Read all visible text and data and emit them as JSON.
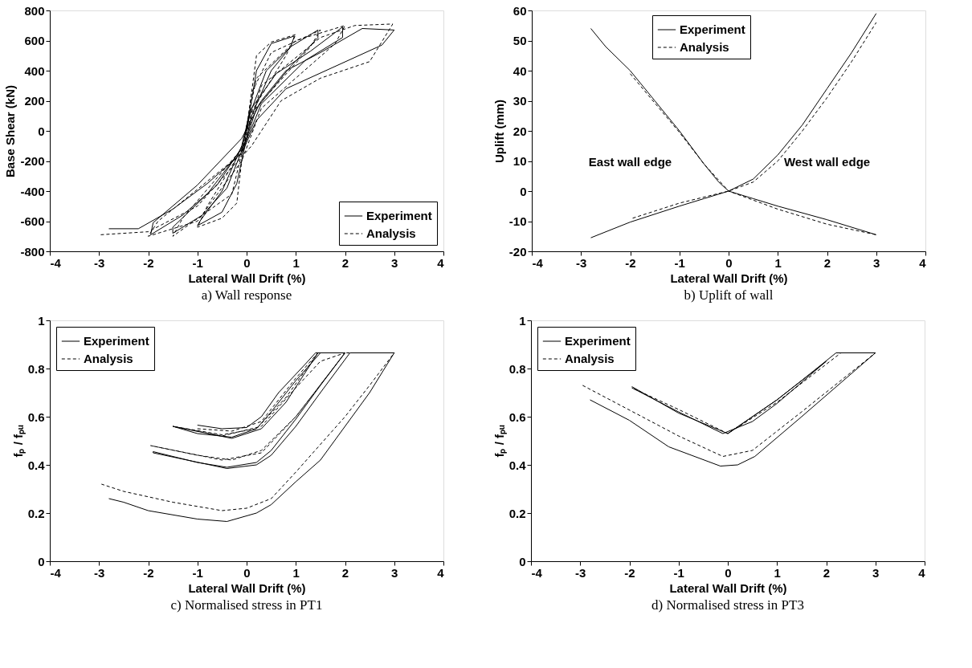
{
  "chart_data": [
    {
      "type": "line",
      "title": "a) Wall response",
      "xlabel": "Lateral Wall Drift (%)",
      "ylabel": "Base Shear (kN)",
      "xlim": [
        -4,
        4
      ],
      "xticks": [
        -4,
        -3,
        -2,
        -1,
        0,
        1,
        2,
        3,
        4
      ],
      "ylim": [
        -800,
        800
      ],
      "yticks": [
        -800,
        -600,
        -400,
        -200,
        0,
        200,
        400,
        600,
        800
      ],
      "legend": "bottom right",
      "series": [
        {
          "name": "Experiment",
          "color": "#000000",
          "line_style": "solid",
          "x": [
            0,
            0.2,
            0.5,
            0.97,
            0.9,
            0.5,
            0.1,
            0,
            -0.2,
            -0.5,
            -1.0,
            -0.95,
            -0.5,
            -0.1,
            0.05,
            0.4,
            0.9,
            1.45,
            1.45,
            0.9,
            0.2,
            0,
            -0.4,
            -0.9,
            -1.5,
            -1.5,
            -0.8,
            -0.1,
            0.1,
            0.6,
            1.3,
            1.95,
            1.95,
            1.2,
            0.3,
            0,
            -0.6,
            -1.3,
            -1.95,
            -1.9,
            -1.0,
            -0.1,
            0.3,
            0.8,
            1.5,
            2.35,
            3.0,
            2.75,
            0.8,
            0.2,
            -0.1,
            -0.8,
            -1.5,
            -2.2,
            -2.8
          ],
          "values": [
            0,
            400,
            580,
            630,
            560,
            400,
            100,
            -50,
            -350,
            -540,
            -630,
            -600,
            -400,
            -100,
            100,
            400,
            560,
            670,
            620,
            430,
            150,
            -50,
            -380,
            -560,
            -680,
            -640,
            -420,
            -120,
            150,
            380,
            530,
            690,
            620,
            470,
            180,
            -60,
            -360,
            -560,
            -690,
            -610,
            -360,
            -50,
            200,
            400,
            520,
            680,
            670,
            570,
            280,
            70,
            -150,
            -350,
            -520,
            -650,
            -650
          ]
        },
        {
          "name": "Analysis",
          "color": "#000000",
          "line_style": "dashed",
          "x": [
            0,
            0.2,
            0.5,
            1.0,
            0.8,
            0.05,
            -0.1,
            -0.2,
            -0.5,
            -1.0,
            -0.8,
            -0.05,
            0.1,
            0.5,
            1.5,
            1.3,
            0.1,
            -0.3,
            -1.5,
            -1.3,
            -0.1,
            0.2,
            1.0,
            2.0,
            1.8,
            0.3,
            -0.1,
            -1.0,
            -2.0,
            -1.8,
            -0.1,
            0.3,
            1.5,
            2.2,
            2.97,
            2.5,
            1.5,
            0.7,
            0.1,
            -1.0,
            -2.0,
            -2.97
          ],
          "values": [
            0,
            500,
            590,
            640,
            500,
            100,
            -200,
            -480,
            -580,
            -640,
            -500,
            -100,
            250,
            520,
            670,
            560,
            120,
            -420,
            -700,
            -580,
            -120,
            350,
            600,
            700,
            580,
            150,
            -200,
            -600,
            -700,
            -600,
            -150,
            300,
            620,
            700,
            710,
            460,
            350,
            200,
            -100,
            -500,
            -670,
            -690
          ]
        }
      ]
    },
    {
      "type": "line",
      "title": "b) Uplift of wall",
      "xlabel": "Lateral Wall Drift (%)",
      "ylabel": "Uplift (mm)",
      "xlim": [
        -4,
        4
      ],
      "xticks": [
        -4,
        -3,
        -2,
        -1,
        0,
        1,
        2,
        3,
        4
      ],
      "ylim": [
        -20,
        60
      ],
      "yticks": [
        -20,
        -10,
        0,
        10,
        20,
        30,
        40,
        50,
        60
      ],
      "legend": "top",
      "annotations": [
        "East wall edge",
        "West wall edge"
      ],
      "series": [
        {
          "name": "Experiment",
          "color": "#000000",
          "line_style": "solid",
          "x": [
            -2.8,
            -2,
            -1,
            -0.5,
            0,
            0.5,
            1,
            1.5,
            2,
            2.5,
            3
          ],
          "values": [
            -15.5,
            -10.3,
            -5,
            -2.5,
            0,
            4,
            12,
            22,
            34,
            46,
            59
          ]
        },
        {
          "color": "#000000",
          "line_style": "solid",
          "x": [
            -2.8,
            -2.5,
            -2,
            -1.5,
            -1,
            -0.5,
            -0.2,
            0,
            0.5,
            1,
            2,
            3
          ],
          "values": [
            54,
            48,
            40,
            30,
            20,
            9,
            3,
            0,
            -2.5,
            -5,
            -9.5,
            -14.5
          ]
        },
        {
          "name": "Analysis",
          "color": "#000000",
          "line_style": "dashed",
          "x": [
            -1.95,
            -1,
            0,
            0.5,
            1,
            1.5,
            2,
            2.5,
            3
          ],
          "values": [
            -9,
            -4,
            0,
            3,
            10,
            20,
            31,
            43,
            56
          ]
        },
        {
          "color": "#000000",
          "line_style": "dashed",
          "x": [
            -2,
            -1,
            -0.5,
            0,
            1,
            2,
            3
          ],
          "values": [
            39,
            19.5,
            9,
            0,
            -6,
            -11,
            -14.5
          ]
        }
      ]
    },
    {
      "type": "line",
      "title": "c) Normalised stress in PT1",
      "xlabel": "Lateral Wall Drift (%)",
      "ylabel": "fₚ / fₚᵤ",
      "xlim": [
        -4,
        4
      ],
      "xticks": [
        -4,
        -3,
        -2,
        -1,
        0,
        1,
        2,
        3,
        4
      ],
      "ylim": [
        0,
        1
      ],
      "yticks": [
        0,
        0.2,
        0.4,
        0.6,
        0.8,
        1
      ],
      "legend": "top left",
      "series": [
        {
          "name": "Experiment",
          "color": "#000000",
          "line_style": "solid",
          "x": [
            -1.0,
            -0.5,
            0,
            0.3,
            0.65,
            1.2,
            1.4,
            1.5,
            1.0,
            0.5,
            0.2,
            -0.3,
            -1.0,
            -1.5,
            -0.3,
            0.3,
            0.8,
            1.45,
            2.0,
            1.5,
            1.0,
            0.5,
            0.2,
            -0.4,
            -1.0,
            -1.9,
            -1.9,
            -0.4,
            0.2,
            0.5,
            1.0,
            1.5,
            2.1,
            3.0,
            2.5,
            2.0,
            1.5,
            1.0,
            0.5,
            0.2,
            -0.4,
            -1.0,
            -2.0,
            -2.5,
            -2.8
          ],
          "values": [
            0.565,
            0.55,
            0.555,
            0.6,
            0.7,
            0.82,
            0.865,
            0.865,
            0.75,
            0.62,
            0.55,
            0.515,
            0.53,
            0.56,
            0.51,
            0.55,
            0.66,
            0.865,
            0.865,
            0.73,
            0.59,
            0.46,
            0.41,
            0.39,
            0.41,
            0.455,
            0.45,
            0.385,
            0.4,
            0.44,
            0.56,
            0.7,
            0.865,
            0.865,
            0.7,
            0.56,
            0.42,
            0.33,
            0.235,
            0.2,
            0.165,
            0.175,
            0.21,
            0.245,
            0.26
          ]
        },
        {
          "name": "Analysis",
          "color": "#000000",
          "line_style": "dashed",
          "x": [
            -1.0,
            -0.3,
            0.3,
            1.0,
            1.45,
            0.8,
            0.2,
            -0.5,
            -1.5,
            -0.5,
            0.3,
            1.0,
            1.5,
            2.0,
            1.0,
            0.3,
            -0.3,
            -1.0,
            -1.95,
            -0.5,
            0.3,
            1.0,
            2.0,
            3.0,
            2.5,
            2.0,
            1.0,
            0.5,
            0,
            -0.5,
            -1.5,
            -2.5,
            -2.95
          ],
          "values": [
            0.55,
            0.54,
            0.58,
            0.76,
            0.865,
            0.68,
            0.55,
            0.525,
            0.56,
            0.52,
            0.56,
            0.72,
            0.83,
            0.865,
            0.6,
            0.46,
            0.42,
            0.44,
            0.48,
            0.42,
            0.45,
            0.6,
            0.865,
            0.865,
            0.73,
            0.6,
            0.37,
            0.26,
            0.22,
            0.21,
            0.245,
            0.29,
            0.32
          ]
        }
      ]
    },
    {
      "type": "line",
      "title": "d) Normalised stress in PT3",
      "xlabel": "Lateral Wall Drift (%)",
      "ylabel": "fₚ / fₚᵤ",
      "xlim": [
        -4,
        4
      ],
      "xticks": [
        -4,
        -3,
        -2,
        -1,
        0,
        1,
        2,
        3,
        4
      ],
      "ylim": [
        0,
        1
      ],
      "yticks": [
        0,
        0.2,
        0.4,
        0.6,
        0.8,
        1
      ],
      "legend": "top left",
      "series": [
        {
          "name": "Experiment",
          "color": "#000000",
          "line_style": "solid",
          "x": [
            -1.95,
            -1.0,
            -0.1,
            0.5,
            1.0,
            2.0,
            1.0,
            0,
            -1.0,
            -1.95
          ],
          "values": [
            0.72,
            0.62,
            0.53,
            0.58,
            0.655,
            0.83,
            0.67,
            0.53,
            0.615,
            0.725
          ]
        },
        {
          "color": "#000000",
          "line_style": "solid",
          "x": [
            -2.8,
            -2.0,
            -1.2,
            -0.15,
            0.2,
            0.55,
            1.5,
            3.0,
            2.2,
            1.5,
            1.0,
            0.5,
            0
          ],
          "values": [
            0.67,
            0.585,
            0.475,
            0.395,
            0.4,
            0.435,
            0.6,
            0.865,
            0.865,
            0.75,
            0.67,
            0.6,
            0.53
          ]
        },
        {
          "name": "Analysis",
          "color": "#000000",
          "line_style": "dashed",
          "x": [
            -2.95,
            -1.0,
            -0.1,
            0.5,
            1.5,
            3.0,
            2.3,
            1.0,
            0,
            -1.0,
            -1.95
          ],
          "values": [
            0.73,
            0.52,
            0.435,
            0.46,
            0.62,
            0.865,
            0.865,
            0.66,
            0.53,
            0.63,
            0.72
          ]
        }
      ]
    }
  ]
}
